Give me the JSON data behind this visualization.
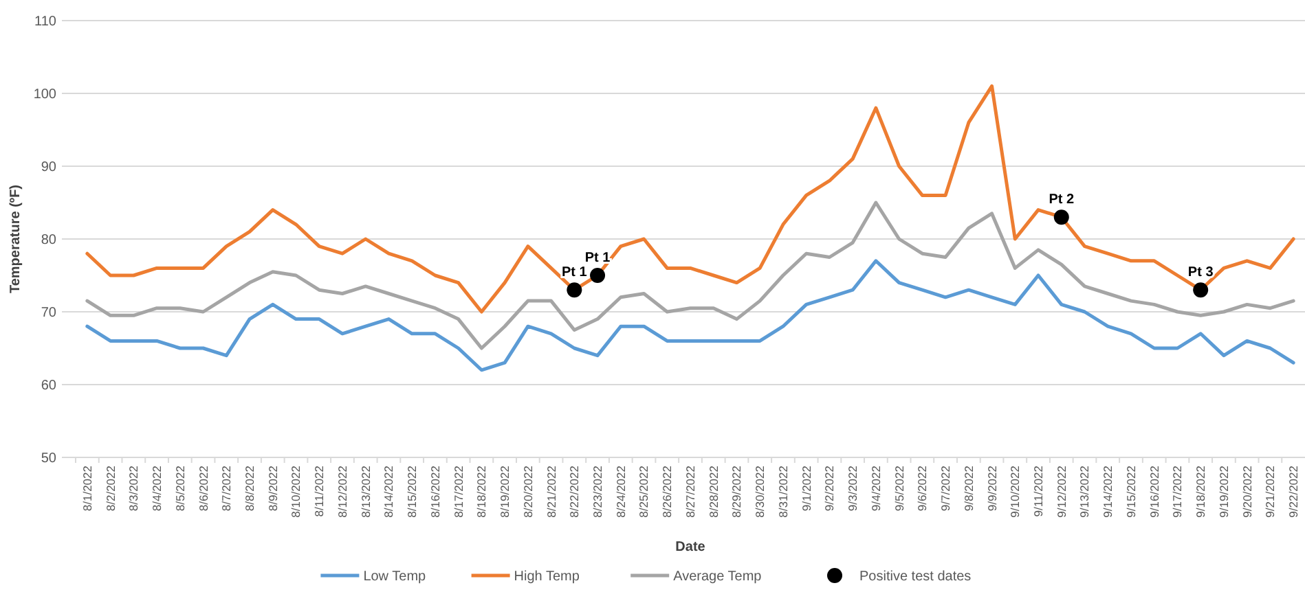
{
  "chart_data": {
    "type": "line",
    "xlabel": "Date",
    "ylabel": "Temperature (ºF)",
    "categories": [
      "8/1/2022",
      "8/2/2022",
      "8/3/2022",
      "8/4/2022",
      "8/5/2022",
      "8/6/2022",
      "8/7/2022",
      "8/8/2022",
      "8/9/2022",
      "8/10/2022",
      "8/11/2022",
      "8/12/2022",
      "8/13/2022",
      "8/14/2022",
      "8/15/2022",
      "8/16/2022",
      "8/17/2022",
      "8/18/2022",
      "8/19/2022",
      "8/20/2022",
      "8/21/2022",
      "8/22/2022",
      "8/23/2022",
      "8/24/2022",
      "8/25/2022",
      "8/26/2022",
      "8/27/2022",
      "8/28/2022",
      "8/29/2022",
      "8/30/2022",
      "8/31/2022",
      "9/1/2022",
      "9/2/2022",
      "9/3/2022",
      "9/4/2022",
      "9/5/2022",
      "9/6/2022",
      "9/7/2022",
      "9/8/2022",
      "9/9/2022",
      "9/10/2022",
      "9/11/2022",
      "9/12/2022",
      "9/13/2022",
      "9/14/2022",
      "9/15/2022",
      "9/16/2022",
      "9/17/2022",
      "9/18/2022",
      "9/19/2022",
      "9/20/2022",
      "9/21/2022",
      "9/22/2022"
    ],
    "series": [
      {
        "name": "Low Temp",
        "color": "#5b9bd5",
        "values": [
          68,
          66,
          66,
          66,
          65,
          65,
          64,
          69,
          71,
          69,
          69,
          67,
          68,
          69,
          67,
          67,
          65,
          62,
          63,
          68,
          67,
          65,
          64,
          68,
          68,
          66,
          66,
          66,
          66,
          66,
          68,
          71,
          72,
          73,
          77,
          74,
          73,
          72,
          73,
          72,
          71,
          75,
          71,
          70,
          68,
          67,
          65,
          65,
          67,
          64,
          66,
          65,
          63
        ]
      },
      {
        "name": "High Temp",
        "color": "#ed7d31",
        "values": [
          78,
          75,
          75,
          76,
          76,
          76,
          79,
          81,
          84,
          82,
          79,
          78,
          80,
          78,
          77,
          75,
          74,
          70,
          74,
          79,
          76,
          73,
          75,
          79,
          80,
          76,
          76,
          75,
          74,
          76,
          82,
          86,
          88,
          91,
          98,
          90,
          86,
          86,
          96,
          101,
          80,
          84,
          83,
          79,
          78,
          77,
          77,
          75,
          73,
          76,
          77,
          76,
          80
        ]
      },
      {
        "name": "Average Temp",
        "color": "#a5a5a5",
        "values": [
          71.5,
          69.5,
          69.5,
          70.5,
          70.5,
          70,
          72,
          74,
          75.5,
          75,
          73,
          72.5,
          73.5,
          72.5,
          71.5,
          70.5,
          69,
          65,
          68,
          71.5,
          71.5,
          67.5,
          69,
          72,
          72.5,
          70,
          70.5,
          70.5,
          69,
          71.5,
          75,
          78,
          77.5,
          79.5,
          85,
          80,
          78,
          77.5,
          81.5,
          83.5,
          76,
          78.5,
          76.5,
          73.5,
          72.5,
          71.5,
          71,
          70,
          69.5,
          70,
          71,
          70.5,
          71.5
        ]
      },
      {
        "name": "Positive test dates",
        "type": "scatter",
        "marker": "circle",
        "color": "#000000",
        "x": [
          "8/22/2022",
          "8/23/2022",
          "9/12/2022",
          "9/18/2022"
        ],
        "values": [
          73,
          75,
          83,
          73
        ]
      }
    ],
    "annotations": [
      {
        "text": "Pt 1",
        "x": "8/22/2022",
        "y": 73
      },
      {
        "text": "Pt 1",
        "x": "8/23/2022",
        "y": 75
      },
      {
        "text": "Pt 2",
        "x": "9/12/2022",
        "y": 83
      },
      {
        "text": "Pt 3",
        "x": "9/18/2022",
        "y": 73
      }
    ],
    "ylim": [
      50,
      110
    ],
    "yticks": [
      50,
      60,
      70,
      80,
      90,
      100,
      110
    ],
    "grid": "y",
    "legend": "bottom",
    "marker": "none",
    "line_style": "solid"
  }
}
